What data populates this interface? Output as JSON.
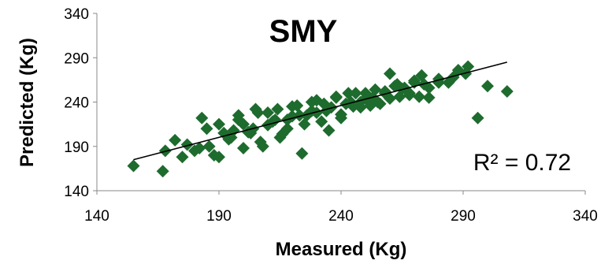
{
  "chart_data": {
    "type": "scatter",
    "title": "SMY",
    "xlabel": "Measured (Kg)",
    "ylabel": "Predicted (Kg)",
    "xlim": [
      140,
      340
    ],
    "ylim": [
      140,
      340
    ],
    "xticks": [
      "140",
      "190",
      "240",
      "290",
      "340"
    ],
    "yticks": [
      "140",
      "190",
      "240",
      "290",
      "340"
    ],
    "marker": "diamond",
    "marker_color": "#1e6b2e",
    "trendline": {
      "x": [
        155,
        308
      ],
      "y": [
        175,
        285
      ],
      "color": "#000000"
    },
    "annotation": "R² = 0.72",
    "grid": false,
    "series": [
      {
        "x": [
          155,
          167,
          168,
          172,
          175,
          180,
          183,
          185,
          188,
          190,
          192,
          195,
          198,
          200,
          203,
          205,
          207,
          210,
          213,
          215,
          218,
          220,
          223,
          225,
          228,
          230,
          233,
          235,
          238,
          240,
          243,
          245,
          248,
          250,
          253,
          255,
          258,
          260,
          263,
          265,
          268,
          270,
          273,
          276,
          280,
          284,
          288,
          292,
          296,
          300,
          308,
          186,
          194,
          202,
          210,
          218,
          226,
          234,
          242,
          250,
          258,
          266,
          274,
          190,
          198,
          206,
          214,
          222,
          230,
          238,
          246,
          254,
          262,
          270,
          177,
          182,
          196,
          204,
          212,
          220,
          228,
          236,
          244,
          252,
          260,
          268,
          276,
          286,
          291,
          200,
          216,
          232,
          248,
          264,
          280,
          224,
          208,
          240,
          256,
          272
        ],
        "y": [
          168,
          162,
          185,
          197,
          178,
          185,
          222,
          210,
          180,
          178,
          205,
          200,
          225,
          215,
          205,
          232,
          195,
          228,
          220,
          200,
          210,
          235,
          225,
          215,
          240,
          228,
          238,
          208,
          245,
          222,
          250,
          235,
          240,
          250,
          245,
          240,
          252,
          272,
          260,
          255,
          248,
          262,
          270,
          245,
          266,
          262,
          276,
          280,
          222,
          258,
          252,
          190,
          198,
          206,
          214,
          220,
          225,
          230,
          238,
          244,
          250,
          256,
          260,
          215,
          220,
          228,
          232,
          236,
          242,
          246,
          250,
          254,
          258,
          264,
          192,
          188,
          208,
          210,
          218,
          224,
          230,
          234,
          240,
          236,
          244,
          250,
          256,
          268,
          272,
          188,
          204,
          218,
          234,
          246,
          262,
          182,
          190,
          226,
          238,
          246
        ]
      }
    ]
  }
}
